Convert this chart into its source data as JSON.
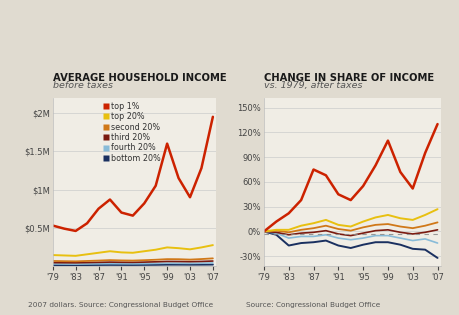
{
  "years": [
    1979,
    1981,
    1983,
    1985,
    1987,
    1989,
    1991,
    1993,
    1995,
    1997,
    1999,
    2001,
    2003,
    2005,
    2007
  ],
  "left_chart": {
    "title_bold": "AVERAGE HOUSEHOLD INCOME",
    "title_sub": "before taxes",
    "ylabel_ticks": [
      "$0.5M",
      "$1M",
      "$1.5M",
      "$2M"
    ],
    "ytick_vals": [
      500000,
      1000000,
      1500000,
      2000000
    ],
    "ylim": [
      0,
      2200000
    ],
    "source": "2007 dollars. Source: Congressional Budget Office",
    "series": {
      "top1": [
        530000,
        490000,
        460000,
        560000,
        750000,
        870000,
        700000,
        660000,
        820000,
        1050000,
        1600000,
        1150000,
        900000,
        1280000,
        1950000
      ],
      "top20": [
        145000,
        140000,
        135000,
        155000,
        175000,
        195000,
        180000,
        175000,
        195000,
        215000,
        245000,
        235000,
        220000,
        245000,
        275000
      ],
      "second20": [
        68000,
        65000,
        63000,
        68000,
        73000,
        79000,
        75000,
        73000,
        78000,
        84000,
        92000,
        91000,
        86000,
        93000,
        102000
      ],
      "third20": [
        46000,
        45000,
        44000,
        47000,
        50000,
        53000,
        51000,
        50000,
        53000,
        57000,
        62000,
        61000,
        59000,
        62000,
        67000
      ],
      "fourth20": [
        29000,
        28000,
        27000,
        29000,
        31000,
        33000,
        32000,
        31000,
        33000,
        36000,
        39000,
        38000,
        37000,
        39000,
        42000
      ],
      "bottom20": [
        15000,
        14500,
        14000,
        15000,
        16000,
        17000,
        16500,
        16000,
        17000,
        18000,
        20000,
        20000,
        19500,
        20000,
        21000
      ]
    },
    "colors": {
      "top1": "#cc2200",
      "top20": "#e8c010",
      "second20": "#d07818",
      "third20": "#7a1a10",
      "fourth20": "#88bbd8",
      "bottom20": "#1a3060"
    },
    "legend_labels": [
      "top 1%",
      "top 20%",
      "second 20%",
      "third 20%",
      "fourth 20%",
      "bottom 20%"
    ]
  },
  "right_chart": {
    "title_bold": "CHANGE IN SHARE OF INCOME",
    "title_sub": "vs. 1979, after taxes",
    "ylabel_ticks": [
      "-30%",
      "0%",
      "30%",
      "60%",
      "90%",
      "120%",
      "150%"
    ],
    "ytick_vals": [
      -30,
      0,
      30,
      60,
      90,
      120,
      150
    ],
    "ylim": [
      -42,
      162
    ],
    "source": "Source: Congressional Budget Office",
    "series": {
      "top1": [
        0,
        12,
        22,
        38,
        75,
        68,
        45,
        38,
        55,
        80,
        110,
        72,
        52,
        95,
        130
      ],
      "top20": [
        0,
        2,
        2,
        7,
        10,
        14,
        8,
        6,
        12,
        17,
        20,
        16,
        14,
        20,
        27
      ],
      "second20": [
        0,
        1,
        -1,
        2,
        4,
        7,
        3,
        1,
        5,
        8,
        9,
        6,
        4,
        7,
        11
      ],
      "third20": [
        0,
        -1,
        -4,
        -2,
        -1,
        1,
        -3,
        -5,
        -2,
        1,
        2,
        -1,
        -3,
        -1,
        2
      ],
      "fourth20": [
        0,
        -2,
        -8,
        -6,
        -6,
        -4,
        -8,
        -10,
        -8,
        -5,
        -5,
        -8,
        -11,
        -9,
        -14
      ],
      "bottom20": [
        0,
        -4,
        -17,
        -14,
        -13,
        -11,
        -17,
        -20,
        -16,
        -13,
        -13,
        -16,
        -21,
        -22,
        -32
      ]
    },
    "colors": {
      "top1": "#cc2200",
      "top20": "#e8c010",
      "second20": "#d07818",
      "third20": "#7a1a10",
      "fourth20": "#88bbd8",
      "bottom20": "#1a3060"
    },
    "dashed_y": -3
  },
  "background_color": "#e0dbd0",
  "plot_bg": "#f0ede5",
  "x_ticks": [
    1979,
    1983,
    1987,
    1991,
    1995,
    1999,
    2003,
    2007
  ],
  "x_tick_labels": [
    "'79",
    "'83",
    "'87",
    "'91",
    "'95",
    "'99",
    "'03",
    "'07"
  ]
}
